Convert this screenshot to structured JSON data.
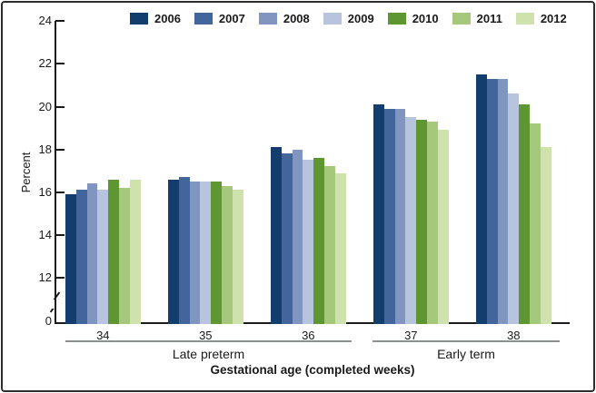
{
  "window": {
    "background": "#ffffff",
    "border_color": "#2d2d2d"
  },
  "chart_data": {
    "type": "bar",
    "title": "",
    "ylabel": "Percent",
    "xlabel": "Gestational age (completed weeks)",
    "categories": [
      "34",
      "35",
      "36",
      "37",
      "38"
    ],
    "category_group_labels": [
      {
        "label": "Late preterm",
        "covers": [
          "34",
          "35",
          "36"
        ]
      },
      {
        "label": "Early term",
        "covers": [
          "37",
          "38"
        ]
      }
    ],
    "series": [
      {
        "name": "2006",
        "color": "#133d6d",
        "values": [
          15.9,
          16.6,
          18.1,
          20.1,
          21.5
        ]
      },
      {
        "name": "2007",
        "color": "#42659b",
        "values": [
          16.1,
          16.7,
          17.8,
          19.9,
          21.3
        ]
      },
      {
        "name": "2008",
        "color": "#8095bf",
        "values": [
          16.4,
          16.5,
          18.0,
          19.9,
          21.3
        ]
      },
      {
        "name": "2009",
        "color": "#b8c3de",
        "values": [
          16.1,
          16.5,
          17.5,
          19.5,
          20.6
        ]
      },
      {
        "name": "2010",
        "color": "#5e9732",
        "values": [
          16.6,
          16.5,
          17.6,
          19.4,
          20.1
        ]
      },
      {
        "name": "2011",
        "color": "#a6c87c",
        "values": [
          16.2,
          16.3,
          17.2,
          19.3,
          19.2
        ]
      },
      {
        "name": "2012",
        "color": "#cfe2ad",
        "values": [
          16.6,
          16.1,
          16.9,
          18.9,
          18.1
        ]
      }
    ],
    "y_ticks": [
      0,
      12,
      14,
      16,
      18,
      20,
      22,
      24
    ],
    "y_tick_labels": [
      "0",
      "12",
      "14",
      "16",
      "18",
      "20",
      "22",
      "24"
    ],
    "ylim": [
      0,
      24
    ],
    "axis_break_between": [
      0,
      12
    ],
    "legend_position": "top",
    "grid": false,
    "axis_color": "#1a1a1a",
    "bracket_color": "#8b9093"
  }
}
